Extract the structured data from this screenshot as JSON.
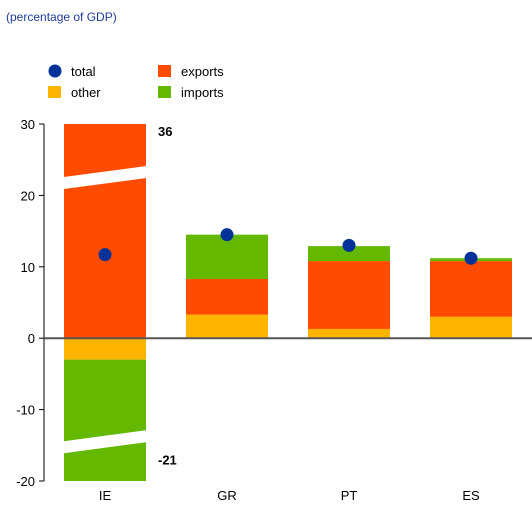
{
  "subtitle": "(percentage of GDP)",
  "chart_data": {
    "type": "bar",
    "stacked": true,
    "subtitle": "(percentage of GDP)",
    "categories": [
      "IE",
      "GR",
      "PT",
      "ES"
    ],
    "series": [
      {
        "name": "other",
        "color": "#ffb400",
        "values": [
          -3.0,
          3.3,
          1.3,
          3.0
        ]
      },
      {
        "name": "exports",
        "color": "#ff4b00",
        "values": [
          36.0,
          5.0,
          9.5,
          7.8
        ]
      },
      {
        "name": "imports",
        "color": "#65b800",
        "values": [
          -21.0,
          6.2,
          2.1,
          0.4
        ]
      }
    ],
    "total": {
      "name": "total",
      "color": "#003299",
      "values": [
        11.7,
        14.5,
        13.0,
        11.2
      ]
    },
    "ylim": [
      -20,
      30
    ],
    "yticks": [
      "30",
      "20",
      "10",
      "0",
      "-10",
      "-20"
    ],
    "ytick_values": [
      30,
      20,
      10,
      0,
      -10,
      -20
    ],
    "axis_breaks": [
      {
        "category": "IE",
        "series": "exports",
        "label": "36"
      },
      {
        "category": "IE",
        "series": "imports",
        "label": "-21"
      }
    ],
    "legend": {
      "placement": "top-left",
      "items": [
        {
          "label": "total",
          "marker": "dot",
          "color": "#003299"
        },
        {
          "label": "exports",
          "marker": "square",
          "color": "#ff4b00"
        },
        {
          "label": "other",
          "marker": "square",
          "color": "#ffb400"
        },
        {
          "label": "imports",
          "marker": "square",
          "color": "#65b800"
        }
      ]
    },
    "grid": false
  }
}
